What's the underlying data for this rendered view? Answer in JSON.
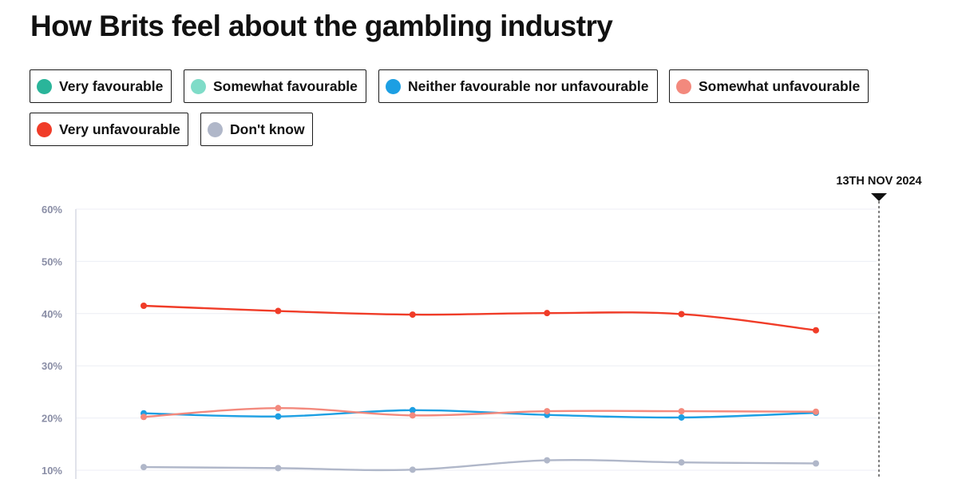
{
  "title": "How Brits feel about the gambling industry",
  "legend": [
    {
      "label": "Very favourable",
      "color": "#2ab59a"
    },
    {
      "label": "Somewhat favourable",
      "color": "#7fdcc8"
    },
    {
      "label": "Neither favourable nor unfavourable",
      "color": "#1c9fe3"
    },
    {
      "label": "Somewhat unfavourable",
      "color": "#f3897d"
    },
    {
      "label": "Very unfavourable",
      "color": "#f03c28"
    },
    {
      "label": "Don't know",
      "color": "#b0b7c9"
    }
  ],
  "chart_data": {
    "type": "line",
    "marker_label": "13TH NOV 2024",
    "yticks": [
      "60%",
      "50%",
      "40%",
      "30%",
      "20%",
      "10%"
    ],
    "ylim": [
      0,
      60
    ],
    "points": 6,
    "grid": true,
    "series": [
      {
        "name": "Very unfavourable",
        "color": "#f03c28",
        "values": [
          41.5,
          40.5,
          39.8,
          40.1,
          39.9,
          36.8
        ]
      },
      {
        "name": "Somewhat unfavourable",
        "color": "#f3897d",
        "values": [
          20.2,
          21.9,
          20.5,
          21.3,
          21.3,
          21.2
        ]
      },
      {
        "name": "Neither favourable nor unfavourable",
        "color": "#1c9fe3",
        "values": [
          20.9,
          20.3,
          21.5,
          20.6,
          20.1,
          21.0
        ]
      },
      {
        "name": "Don't know",
        "color": "#b0b7c9",
        "values": [
          10.6,
          10.4,
          10.1,
          11.9,
          11.5,
          11.3
        ]
      }
    ]
  }
}
